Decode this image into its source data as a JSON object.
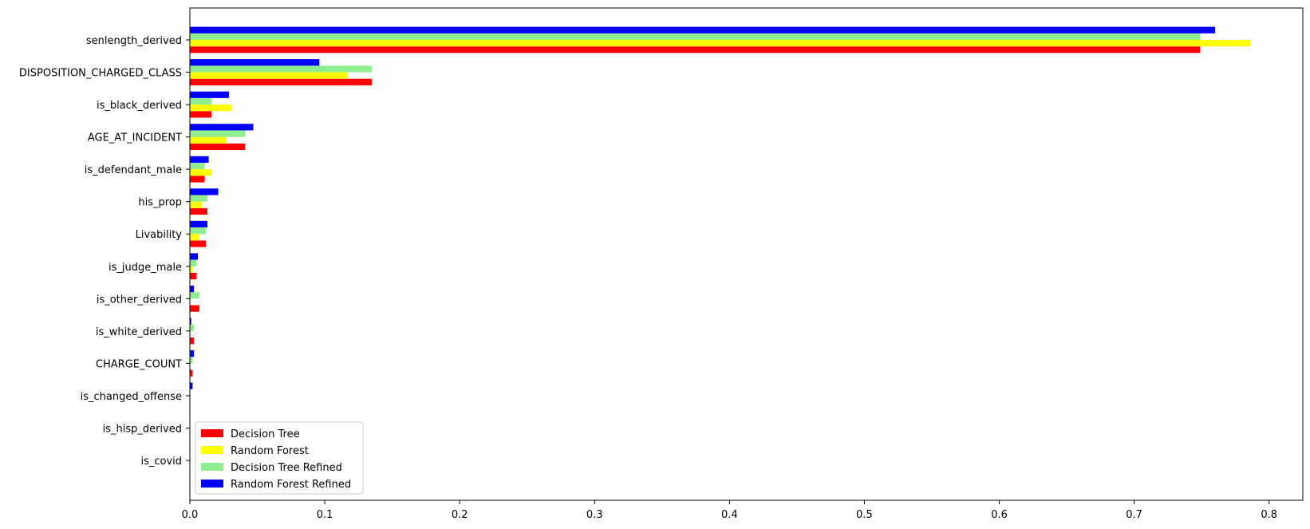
{
  "chart_data": {
    "type": "bar",
    "orientation": "horizontal",
    "title": "",
    "xlabel": "",
    "ylabel": "",
    "categories": [
      "senlength_derived",
      "DISPOSITION_CHARGED_CLASS",
      "is_black_derived",
      "AGE_AT_INCIDENT",
      "is_defendant_male",
      "his_prop",
      "Livability",
      "is_judge_male",
      "is_other_derived",
      "is_white_derived",
      "CHARGE_COUNT",
      "is_changed_offense",
      "is_hisp_derived",
      "is_covid"
    ],
    "series": [
      {
        "name": "Decision Tree",
        "color": "#ff0000",
        "values": [
          0.749,
          0.135,
          0.016,
          0.041,
          0.011,
          0.013,
          0.012,
          0.005,
          0.007,
          0.003,
          0.002,
          0.0,
          0.0,
          0.0
        ]
      },
      {
        "name": "Random Forest",
        "color": "#ffff00",
        "values": [
          0.786,
          0.117,
          0.031,
          0.027,
          0.016,
          0.009,
          0.007,
          0.002,
          0.0,
          0.0,
          0.0,
          0.0,
          0.0,
          0.0
        ]
      },
      {
        "name": "Decision Tree Refined",
        "color": "#90ee90",
        "values": [
          0.749,
          0.135,
          0.016,
          0.041,
          0.011,
          0.013,
          0.012,
          0.005,
          0.007,
          0.003,
          0.002,
          0.0,
          0.0,
          0.0
        ]
      },
      {
        "name": "Random Forest Refined",
        "color": "#0000ff",
        "values": [
          0.76,
          0.096,
          0.029,
          0.047,
          0.014,
          0.021,
          0.013,
          0.006,
          0.003,
          0.001,
          0.003,
          0.002,
          0.0,
          0.0
        ]
      }
    ],
    "xlim": [
      0.0,
      0.825
    ],
    "xticks": [
      "0.0",
      "0.1",
      "0.2",
      "0.3",
      "0.4",
      "0.5",
      "0.6",
      "0.7",
      "0.8"
    ],
    "xtick_values": [
      0.0,
      0.1,
      0.2,
      0.3,
      0.4,
      0.5,
      0.6,
      0.7,
      0.8
    ],
    "grid": false,
    "legend_position": "lower-left"
  }
}
